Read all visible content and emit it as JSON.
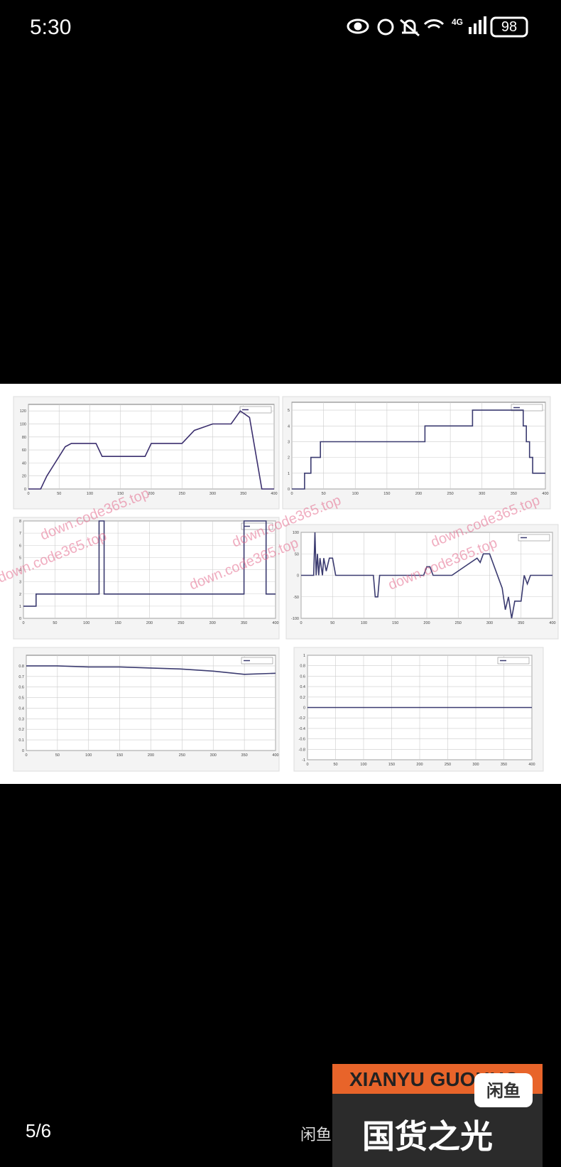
{
  "status_bar": {
    "time": "5:30",
    "network": "4G",
    "battery": "98"
  },
  "viewer": {
    "page": "5/6",
    "caption": "闲鱼",
    "watermark": "down.code365.top"
  },
  "banner": {
    "brand": "XIANYU GUOHUO",
    "slogan": "国货之光",
    "logo": "闲鱼"
  },
  "charts": [
    {
      "type": "line",
      "color": "#3b2f6e",
      "xlim": [
        0,
        400
      ],
      "ylim": [
        0,
        130
      ],
      "xticks": [
        0,
        50,
        100,
        150,
        200,
        250,
        300,
        350,
        400
      ],
      "yticks": [
        0,
        20,
        40,
        60,
        80,
        100,
        120
      ],
      "x": [
        0,
        20,
        25,
        30,
        40,
        50,
        60,
        70,
        110,
        120,
        190,
        200,
        250,
        270,
        300,
        330,
        345,
        360,
        380,
        400
      ],
      "y": [
        0,
        0,
        10,
        20,
        35,
        50,
        65,
        70,
        70,
        50,
        50,
        70,
        70,
        90,
        100,
        100,
        120,
        110,
        0,
        0
      ]
    },
    {
      "type": "line",
      "color": "#3b3b70",
      "xlim": [
        0,
        400
      ],
      "ylim": [
        0,
        5.5
      ],
      "xticks": [
        0,
        50,
        100,
        150,
        200,
        250,
        300,
        350,
        400
      ],
      "yticks": [
        0,
        1,
        2,
        3,
        4,
        5
      ],
      "x": [
        0,
        20,
        20,
        30,
        30,
        45,
        45,
        210,
        210,
        285,
        285,
        365,
        365,
        370,
        370,
        375,
        375,
        380,
        380,
        400
      ],
      "y": [
        0,
        0,
        1,
        1,
        2,
        2,
        3,
        3,
        4,
        4,
        5,
        5,
        4,
        4,
        3,
        3,
        2,
        2,
        1,
        1
      ]
    },
    {
      "type": "line",
      "color": "#3b3b70",
      "xlim": [
        0,
        400
      ],
      "ylim": [
        0,
        8
      ],
      "xticks": [
        0,
        50,
        100,
        150,
        200,
        250,
        300,
        350,
        400
      ],
      "yticks": [
        0,
        1,
        2,
        3,
        4,
        5,
        6,
        7,
        8
      ],
      "x": [
        0,
        20,
        20,
        120,
        120,
        128,
        128,
        350,
        350,
        385,
        385,
        400
      ],
      "y": [
        1,
        1,
        2,
        2,
        8,
        8,
        2,
        2,
        8,
        8,
        2,
        2
      ]
    },
    {
      "type": "line",
      "color": "#3b3b70",
      "xlim": [
        0,
        400
      ],
      "ylim": [
        -100,
        100
      ],
      "xticks": [
        0,
        50,
        100,
        150,
        200,
        250,
        300,
        350,
        400
      ],
      "yticks": [
        -100,
        -50,
        0,
        50,
        100
      ],
      "x": [
        0,
        20,
        22,
        24,
        26,
        28,
        30,
        34,
        36,
        40,
        45,
        50,
        55,
        115,
        118,
        122,
        125,
        195,
        200,
        205,
        210,
        240,
        260,
        280,
        285,
        290,
        300,
        305,
        320,
        325,
        330,
        335,
        340,
        350,
        355,
        360,
        365,
        400
      ],
      "y": [
        0,
        0,
        100,
        0,
        50,
        0,
        40,
        0,
        40,
        10,
        40,
        40,
        0,
        0,
        -50,
        -50,
        0,
        0,
        20,
        20,
        0,
        0,
        20,
        40,
        30,
        50,
        50,
        30,
        -30,
        -80,
        -50,
        -100,
        -60,
        -60,
        0,
        -20,
        0,
        0
      ]
    },
    {
      "type": "line",
      "color": "#3b3b70",
      "xlim": [
        0,
        400
      ],
      "ylim": [
        0,
        0.9
      ],
      "xticks": [
        0,
        50,
        100,
        150,
        200,
        250,
        300,
        350,
        400
      ],
      "yticks": [
        0,
        0.1,
        0.2,
        0.3,
        0.4,
        0.5,
        0.6,
        0.7,
        0.8
      ],
      "x": [
        0,
        50,
        100,
        150,
        200,
        250,
        300,
        350,
        400
      ],
      "y": [
        0.8,
        0.8,
        0.79,
        0.79,
        0.78,
        0.77,
        0.75,
        0.72,
        0.73
      ]
    },
    {
      "type": "line",
      "color": "#3b3b70",
      "xlim": [
        0,
        400
      ],
      "ylim": [
        -1,
        1
      ],
      "xticks": [
        0,
        50,
        100,
        150,
        200,
        250,
        300,
        350,
        400
      ],
      "yticks": [
        -1,
        -0.8,
        -0.6,
        -0.4,
        -0.2,
        0,
        0.2,
        0.4,
        0.6,
        0.8,
        1
      ],
      "x": [
        0,
        400
      ],
      "y": [
        0,
        0
      ]
    }
  ]
}
